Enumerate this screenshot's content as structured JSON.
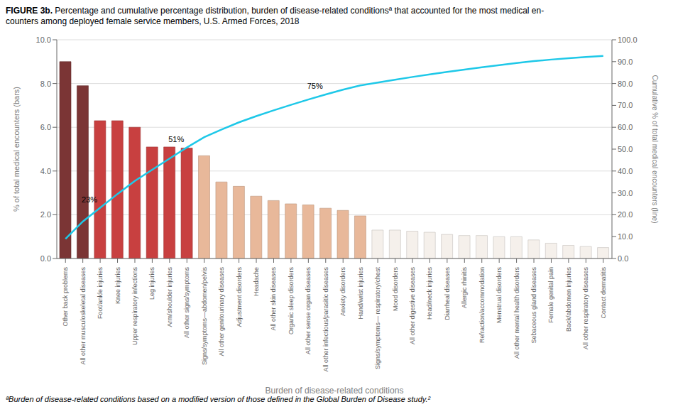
{
  "chart_data": {
    "type": "bar",
    "title": "FIGURE 3b.",
    "subtitle": "Percentage and cumulative percentage distribution, burden of disease-related conditionsª that accounted for the most medical en-\ncounters among deployed female service members, U.S. Armed Forces, 2018",
    "footnote": "ªBurden of disease-related conditions based on a modified version of those defined in the Global Burden of Disease study.²",
    "xlabel": "Burden of disease-related conditions",
    "ylabel": "% of total medical encounters (bars)",
    "y2label": "Cumulative % of total medical encounters (line)",
    "categories": [
      "Other back problems",
      "All other musculoskeletal diseases",
      "Foot/ankle injuries",
      "Knee injuries",
      "Upper respiratory infections",
      "Leg injuries",
      "Arm/shoulder injuries",
      "All other signs/symptoms",
      "Signs/symptoms—abdomen/pelvis",
      "All other genitourinary diseases",
      "Adjustment disorders",
      "Headache",
      "All other skin diseases",
      "Organic sleep disorders",
      "All other sense organ diseases",
      "All other infectious/parasitic diseases",
      "Anxiety disorders",
      "Hand/wrist injuries",
      "Signs/symptoms— respiratory/chest",
      "Mood disorders",
      "All other digestive diseases",
      "Head/neck injuries",
      "Diarrheal diseases",
      "Allergic rhinitis",
      "Refraction/accommodation",
      "Menstrual disorders",
      "All other mental health disorders",
      "Sebaceous gland diseases",
      "Female genital pain",
      "Back/abdomen injuries",
      "All other respiratory diseases",
      "Contact dermatitis"
    ],
    "series": [
      {
        "type": "bar",
        "colors": [
          "#7B3535",
          "#7B3535",
          "#C84040",
          "#C84040",
          "#C84040",
          "#C84040",
          "#C84040",
          "#C84040",
          "#E8B89A",
          "#E8B89A",
          "#E8B89A",
          "#E8B89A",
          "#E8B89A",
          "#E8B89A",
          "#E8B89A",
          "#E8B89A",
          "#E8B89A",
          "#E8B89A",
          "#F5F0EB",
          "#F5F0EB",
          "#F5F0EB",
          "#F5F0EB",
          "#F5F0EB",
          "#F5F0EB",
          "#F5F0EB",
          "#F5F0EB",
          "#F5F0EB",
          "#F5F0EB",
          "#F5F0EB",
          "#F5F0EB",
          "#F5F0EB",
          "#F5F0EB"
        ],
        "values": [
          9.0,
          7.9,
          6.3,
          6.3,
          6.0,
          5.1,
          5.1,
          5.05,
          4.7,
          3.5,
          3.3,
          2.85,
          2.65,
          2.5,
          2.45,
          2.3,
          2.2,
          1.95,
          1.3,
          1.3,
          1.25,
          1.2,
          1.1,
          1.05,
          1.05,
          1.0,
          1.0,
          0.85,
          0.7,
          0.6,
          0.55,
          0.5
        ]
      },
      {
        "type": "line",
        "axis": "y2",
        "color": "#1EC8E8",
        "values": [
          9.0,
          16.9,
          23.2,
          29.5,
          35.5,
          40.6,
          45.7,
          50.75,
          55.45,
          58.95,
          62.25,
          65.1,
          67.75,
          70.25,
          72.7,
          75.0,
          77.2,
          79.15,
          80.45,
          81.75,
          83.0,
          84.2,
          85.3,
          86.35,
          87.4,
          88.4,
          89.4,
          90.25,
          90.95,
          91.55,
          92.1,
          92.6
        ]
      }
    ],
    "annotations": [
      {
        "text": "23%",
        "category": "Foot/ankle injuries"
      },
      {
        "text": "51%",
        "category": "All other signs/symptoms"
      },
      {
        "text": "75%",
        "category": "All other infectious/parasitic diseases"
      }
    ],
    "ylim": [
      0,
      10.0
    ],
    "yticks": [
      {
        "value": 0,
        "label": "0.0"
      },
      {
        "value": 2,
        "label": "2.0"
      },
      {
        "value": 4,
        "label": "4.0"
      },
      {
        "value": 6,
        "label": "6.0"
      },
      {
        "value": 8,
        "label": "8.0"
      },
      {
        "value": 10,
        "label": "10.0"
      }
    ],
    "y2lim": [
      0,
      100.0
    ],
    "y2ticks": [
      {
        "value": 0,
        "label": "0.0"
      },
      {
        "value": 10,
        "label": "10.0"
      },
      {
        "value": 20,
        "label": "20.0"
      },
      {
        "value": 30,
        "label": "30.0"
      },
      {
        "value": 40,
        "label": "40.0"
      },
      {
        "value": 50,
        "label": "50.0"
      },
      {
        "value": 60,
        "label": "60.0"
      },
      {
        "value": 70,
        "label": "70.0"
      },
      {
        "value": 80,
        "label": "80.0"
      },
      {
        "value": 90,
        "label": "90.0"
      },
      {
        "value": 100,
        "label": "100.0"
      }
    ],
    "grid": true
  }
}
